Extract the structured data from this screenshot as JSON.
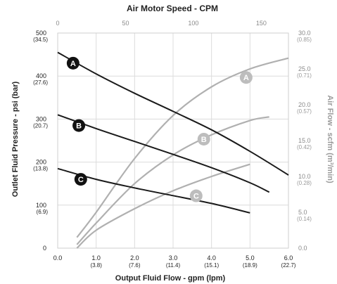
{
  "chart_data": {
    "type": "line",
    "title": "Air Motor Speed - CPM",
    "xlabel": "Output Fluid Flow - gpm (lpm)",
    "ylabel": "Outlet Fluid Pressure - psi (bar)",
    "y2label": "Air Flow - scfm (m³/min)",
    "xlim": [
      0,
      6
    ],
    "ylim": [
      0,
      500
    ],
    "y2lim": [
      0,
      30
    ],
    "top_axis": {
      "ticks": [
        "0",
        "50",
        "100",
        "150"
      ],
      "positions": [
        0,
        50,
        100,
        150
      ],
      "range": [
        0,
        170
      ]
    },
    "x_ticks": [
      {
        "value": 0,
        "main": "0.0",
        "sub": ""
      },
      {
        "value": 1,
        "main": "1.0",
        "sub": "(3.8)"
      },
      {
        "value": 2,
        "main": "2.0",
        "sub": "(7.6)"
      },
      {
        "value": 3,
        "main": "3.0",
        "sub": "(11.4)"
      },
      {
        "value": 4,
        "main": "4.0",
        "sub": "(15.1)"
      },
      {
        "value": 5,
        "main": "5.0",
        "sub": "(18.9)"
      },
      {
        "value": 6,
        "main": "6.0",
        "sub": "(22.7)"
      }
    ],
    "y_ticks": [
      {
        "value": 0,
        "main": "0",
        "sub": ""
      },
      {
        "value": 100,
        "main": "100",
        "sub": "(6.9)"
      },
      {
        "value": 200,
        "main": "200",
        "sub": "(13.8)"
      },
      {
        "value": 300,
        "main": "300",
        "sub": "(20.7)"
      },
      {
        "value": 400,
        "main": "400",
        "sub": "(27.6)"
      },
      {
        "value": 500,
        "main": "500",
        "sub": "(34.5)"
      }
    ],
    "y2_ticks": [
      {
        "value": 0,
        "main": "0.0",
        "sub": ""
      },
      {
        "value": 5,
        "main": "5.0",
        "sub": "(0.14)"
      },
      {
        "value": 10,
        "main": "10.0",
        "sub": "(0.28)"
      },
      {
        "value": 15,
        "main": "15.0",
        "sub": "(0.42)"
      },
      {
        "value": 20,
        "main": "20.0",
        "sub": "(0.57)"
      },
      {
        "value": 25,
        "main": "25.0",
        "sub": "(0.71)"
      },
      {
        "value": 30,
        "main": "30.0",
        "sub": "(0.85)"
      }
    ],
    "pressure_series": [
      {
        "name": "A",
        "x": [
          0.0,
          1.0,
          2.0,
          3.0,
          4.0,
          5.0,
          6.0
        ],
        "y": [
          455,
          405,
          360,
          318,
          275,
          225,
          170
        ],
        "label_at": [
          0.4,
          430
        ]
      },
      {
        "name": "B",
        "x": [
          0.0,
          1.0,
          2.0,
          3.0,
          4.0,
          5.0,
          5.5
        ],
        "y": [
          310,
          278,
          248,
          218,
          187,
          152,
          130
        ],
        "label_at": [
          0.55,
          285
        ]
      },
      {
        "name": "C",
        "x": [
          0.0,
          1.0,
          2.0,
          3.0,
          4.0,
          5.0
        ],
        "y": [
          185,
          160,
          140,
          122,
          104,
          82
        ],
        "label_at": [
          0.6,
          160
        ]
      }
    ],
    "airflow_series": [
      {
        "name": "A",
        "x": [
          0.5,
          1.0,
          2.0,
          3.0,
          4.0,
          5.0,
          6.0
        ],
        "y": [
          1.5,
          5.0,
          12.5,
          18.5,
          22.5,
          25.0,
          26.5
        ],
        "label_at": [
          4.9,
          23.8
        ]
      },
      {
        "name": "B",
        "x": [
          0.5,
          1.0,
          2.0,
          3.0,
          4.0,
          5.0,
          5.5
        ],
        "y": [
          0.5,
          3.5,
          9.0,
          13.0,
          15.8,
          17.8,
          18.3
        ],
        "label_at": [
          3.8,
          15.2
        ]
      },
      {
        "name": "C",
        "x": [
          0.5,
          1.0,
          2.0,
          3.0,
          4.0,
          5.0
        ],
        "y": [
          0.0,
          2.5,
          5.5,
          8.0,
          10.0,
          11.7
        ],
        "label_at": [
          3.6,
          7.3
        ]
      }
    ],
    "colors": {
      "pressure": "#1a1a1a",
      "airflow": "#b0b0b0",
      "grid": "#dcdcdc",
      "badge_dark": "#111111",
      "badge_gray": "#bdbdbd"
    },
    "grid": true
  }
}
